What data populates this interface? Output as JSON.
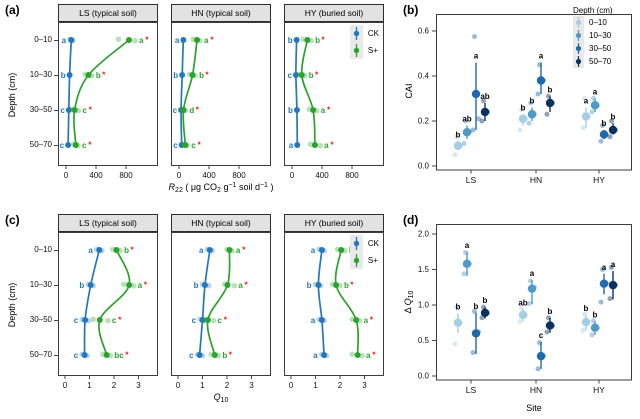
{
  "sig_symbol": "*",
  "colors": {
    "ck": "#2377bd",
    "splus": "#2aa22b",
    "sig_star": "#e8191d",
    "depth": [
      "#a6cee3",
      "#4f9ac8",
      "#2069ad",
      "#0b3160"
    ],
    "strip_bg": "#e2e2e2",
    "border": "#3c3c3c"
  },
  "chart_data": [
    {
      "id": "a",
      "title": "(a)",
      "type": "line",
      "orientation": "horizontal-profile",
      "y_label": "Depth (cm)",
      "x_label": "R22 (ug CO2 g-1 soil d-1)",
      "x_label_rich": [
        [
          "i",
          "R"
        ],
        [
          "sub",
          "22"
        ],
        [
          "t",
          " ( μg CO"
        ],
        [
          "sub",
          "2"
        ],
        [
          "t",
          " g"
        ],
        [
          "sup",
          "−1"
        ],
        [
          "t",
          " soil d"
        ],
        [
          "sup",
          "−1"
        ],
        [
          "t",
          " )"
        ]
      ],
      "categories": [
        "0–10",
        "10–30",
        "30–50",
        "50–70"
      ],
      "x_ticks": [
        0,
        400,
        800
      ],
      "x_tick_labels": [
        "0",
        "400",
        "800"
      ],
      "xlim": [
        -40,
        1050
      ],
      "legend": {
        "items": [
          "CK",
          "S+"
        ]
      },
      "facets": [
        {
          "title": "LS (typical soil)",
          "series": [
            {
              "name": "CK",
              "values": [
                70,
                48,
                38,
                28
              ],
              "letters": [
                "a",
                "b",
                "c",
                "c"
              ],
              "sig": [
                false,
                false,
                false,
                false
              ],
              "reps": [
                [
                  55,
                  90
                ],
                [],
                [],
                []
              ]
            },
            {
              "name": "S+",
              "values": [
                840,
                300,
                115,
                130
              ],
              "letters": [
                "a",
                "b",
                "c",
                "c"
              ],
              "sig": [
                true,
                true,
                true,
                true
              ],
              "reps": [
                [
                  700,
                  920
                ],
                [
                  255,
                  345
                ],
                [
                  80,
                  165
                ],
                [
                  100,
                  160
                ]
              ]
            }
          ]
        },
        {
          "title": "HN (typical soil)",
          "series": [
            {
              "name": "CK",
              "values": [
                58,
                42,
                28,
                36
              ],
              "letters": [
                "a",
                "b",
                "c",
                "c"
              ],
              "sig": [
                false,
                false,
                false,
                false
              ],
              "reps": [
                [],
                [],
                [],
                []
              ]
            },
            {
              "name": "S+",
              "values": [
                240,
                180,
                60,
                85
              ],
              "letters": [
                "a",
                "b",
                "d",
                "c"
              ],
              "sig": [
                true,
                true,
                true,
                true
              ],
              "reps": [
                [
                  190,
                  280
                ],
                [
                  140,
                  215
                ],
                [
                  40,
                  85
                ],
                [
                  60,
                  110
                ]
              ]
            }
          ]
        },
        {
          "title": "HY (buried soil)",
          "series": [
            {
              "name": "CK",
              "values": [
                62,
                52,
                66,
                70
              ],
              "letters": [
                "b",
                "c",
                "b",
                "a"
              ],
              "sig": [
                false,
                false,
                false,
                false
              ],
              "reps": [
                [],
                [],
                [],
                []
              ]
            },
            {
              "name": "S+",
              "values": [
                205,
                130,
                282,
                305
              ],
              "letters": [
                "b",
                "b",
                "a",
                "a"
              ],
              "sig": [
                true,
                true,
                true,
                true
              ],
              "reps": [
                [
                  150,
                  255
                ],
                [
                  95,
                  170
                ],
                [
                  230,
                  330
                ],
                [
                  245,
                  375
                ]
              ]
            }
          ]
        }
      ]
    },
    {
      "id": "b",
      "title": "(b)",
      "type": "scatter",
      "y_label": "CAI",
      "x_label": "",
      "categories": [
        "LS",
        "HN",
        "HY"
      ],
      "y_ticks": [
        0,
        0.2,
        0.4,
        0.6
      ],
      "y_tick_labels": [
        "0.0",
        "0.2",
        "0.4",
        "0.6"
      ],
      "ylim": [
        0,
        0.68
      ],
      "legend": {
        "title": "Depth (cm)",
        "items": [
          "0–10",
          "10–30",
          "30–50",
          "50–70"
        ]
      },
      "series": [
        {
          "name": "0–10",
          "values": [
            0.09,
            0.21,
            0.22
          ],
          "err": [
            [
              0.07,
              0.11
            ],
            [
              0.18,
              0.23
            ],
            [
              0.17,
              0.26
            ]
          ],
          "letters": [
            "b",
            "b",
            "a"
          ],
          "reps": [
            [
              0.05,
              0.09,
              0.13
            ],
            [
              0.16,
              0.21,
              0.25
            ],
            [
              0.17,
              0.22,
              0.3
            ]
          ]
        },
        {
          "name": "10–30",
          "values": [
            0.15,
            0.23,
            0.27
          ],
          "err": [
            [
              0.12,
              0.18
            ],
            [
              0.2,
              0.26
            ],
            [
              0.24,
              0.3
            ]
          ],
          "letters": [
            "ab",
            "b",
            "a"
          ],
          "reps": [
            [
              0.1,
              0.15,
              0.2
            ],
            [
              0.19,
              0.23,
              0.28
            ],
            [
              0.24,
              0.27,
              0.3
            ]
          ]
        },
        {
          "name": "30–50",
          "values": [
            0.32,
            0.38,
            0.14
          ],
          "err": [
            [
              0.16,
              0.46
            ],
            [
              0.32,
              0.46
            ],
            [
              0.12,
              0.16
            ]
          ],
          "letters": [
            "a",
            "a",
            "b"
          ],
          "reps": [
            [
              0.16,
              0.21,
              0.575
            ],
            [
              0.32,
              0.38,
              0.45
            ],
            [
              0.11,
              0.14,
              0.18
            ]
          ]
        },
        {
          "name": "50–70",
          "values": [
            0.24,
            0.28,
            0.16
          ],
          "err": [
            [
              0.2,
              0.28
            ],
            [
              0.24,
              0.31
            ],
            [
              0.14,
              0.19
            ]
          ],
          "letters": [
            "ab",
            "b",
            "b"
          ],
          "reps": [
            [
              0.2,
              0.24,
              0.29
            ],
            [
              0.23,
              0.28,
              0.31
            ],
            [
              0.13,
              0.16,
              0.2
            ]
          ]
        }
      ]
    },
    {
      "id": "c",
      "title": "(c)",
      "type": "line",
      "orientation": "horizontal-profile",
      "y_label": "Depth (cm)",
      "x_label": "Q10",
      "x_label_rich": [
        [
          "i",
          "Q"
        ],
        [
          "sub",
          "10"
        ]
      ],
      "categories": [
        "0–10",
        "10–30",
        "30–50",
        "50–70"
      ],
      "x_ticks": [
        0,
        1,
        2,
        3
      ],
      "x_tick_labels": [
        "0",
        "1",
        "2",
        "3"
      ],
      "xlim": [
        -0.15,
        3.55
      ],
      "legend": {
        "items": [
          "CK",
          "S+"
        ]
      },
      "facets": [
        {
          "title": "LS (typical soil)",
          "series": [
            {
              "name": "CK",
              "values": [
                1.4,
                1.05,
                0.82,
                0.8
              ],
              "letters": [
                "a",
                "b",
                "c",
                "c"
              ],
              "sig": [
                false,
                false,
                false,
                false
              ],
              "reps": [
                [
                  1.3,
                  1.5
                ],
                [
                  0.95,
                  1.15
                ],
                [
                  0.7,
                  0.95
                ],
                [
                  0.7,
                  0.9
                ]
              ]
            },
            {
              "name": "S+",
              "values": [
                2.1,
                2.62,
                1.42,
                1.7
              ],
              "letters": [
                "b",
                "a",
                "c",
                "bc"
              ],
              "sig": [
                true,
                true,
                true,
                true
              ],
              "reps": [
                [
                  1.95,
                  2.25
                ],
                [
                  2.4,
                  2.8
                ],
                [
                  1.15,
                  1.75
                ],
                [
                  1.55,
                  1.85
                ]
              ]
            }
          ]
        },
        {
          "title": "HN (typical soil)",
          "series": [
            {
              "name": "CK",
              "values": [
                1.3,
                1.1,
                1.0,
                0.88
              ],
              "letters": [
                "a",
                "b",
                "c",
                "c"
              ],
              "sig": [
                false,
                false,
                false,
                false
              ],
              "reps": [
                [
                  1.2,
                  1.4
                ],
                [
                  1.0,
                  1.25
                ],
                [
                  0.9,
                  1.1
                ],
                [
                  0.8,
                  1.0
                ]
              ]
            },
            {
              "name": "S+",
              "values": [
                2.1,
                2.02,
                1.22,
                1.5
              ],
              "letters": [
                "a",
                "a",
                "c",
                "b"
              ],
              "sig": [
                true,
                true,
                true,
                true
              ],
              "reps": [
                [
                  2.0,
                  2.2
                ],
                [
                  1.9,
                  2.3
                ],
                [
                  1.1,
                  1.45
                ],
                [
                  1.35,
                  1.65
                ]
              ]
            }
          ]
        },
        {
          "title": "HY (buried soil)",
          "series": [
            {
              "name": "CK",
              "values": [
                1.26,
                1.12,
                1.26,
                1.35
              ],
              "letters": [
                "a",
                "b",
                "a",
                "a"
              ],
              "sig": [
                false,
                false,
                false,
                false
              ],
              "reps": [
                [
                  1.15,
                  1.35
                ],
                [
                  1.0,
                  1.2
                ],
                [
                  1.15,
                  1.35
                ],
                [
                  1.25,
                  1.45
                ]
              ]
            },
            {
              "name": "S+",
              "values": [
                2.05,
                1.84,
                2.66,
                2.72
              ],
              "letters": [
                "b",
                "b",
                "a",
                "a"
              ],
              "sig": [
                true,
                true,
                true,
                true
              ],
              "reps": [
                [
                  1.9,
                  2.2
                ],
                [
                  1.7,
                  2.0
                ],
                [
                  2.5,
                  2.8
                ],
                [
                  2.5,
                  2.9
                ]
              ]
            }
          ]
        }
      ]
    },
    {
      "id": "d",
      "title": "(d)",
      "type": "scatter",
      "y_label": "ΔQ10",
      "y_label_rich": [
        [
          "t",
          "Δ "
        ],
        [
          "i",
          "Q"
        ],
        [
          "sub",
          "10"
        ]
      ],
      "x_label": "Site",
      "categories": [
        "LS",
        "HN",
        "HY"
      ],
      "y_ticks": [
        0,
        0.5,
        1,
        1.5,
        2
      ],
      "y_tick_labels": [
        "0.0",
        "0.5",
        "1.0",
        "1.5",
        "2.0"
      ],
      "ylim": [
        0,
        2.1
      ],
      "legend": {
        "title": "Depth (cm)",
        "items": [
          "0–10",
          "10–30",
          "30–50",
          "50–70"
        ]
      },
      "series": [
        {
          "name": "0–10",
          "values": [
            0.75,
            0.86,
            0.76
          ],
          "err": [
            [
              0.61,
              0.88
            ],
            [
              0.77,
              0.94
            ],
            [
              0.64,
              0.86
            ]
          ],
          "letters": [
            "b",
            "ab",
            "b"
          ],
          "reps": [
            [
              0.45,
              0.75,
              0.97
            ],
            [
              0.77,
              0.86,
              0.95
            ],
            [
              0.64,
              0.76,
              0.87
            ]
          ]
        },
        {
          "name": "10–30",
          "values": [
            1.58,
            1.23,
            0.68
          ],
          "err": [
            [
              1.41,
              1.75
            ],
            [
              1.01,
              1.35
            ],
            [
              0.58,
              0.77
            ]
          ],
          "letters": [
            "a",
            "a",
            "b"
          ],
          "reps": [
            [
              1.44,
              1.58,
              1.74
            ],
            [
              1.02,
              1.25,
              1.34
            ],
            [
              0.58,
              0.68,
              0.78
            ]
          ]
        },
        {
          "name": "30–50",
          "values": [
            0.6,
            0.28,
            1.3
          ],
          "err": [
            [
              0.31,
              0.89
            ],
            [
              0.1,
              0.48
            ],
            [
              1.15,
              1.44
            ]
          ],
          "letters": [
            "b",
            "c",
            "a"
          ],
          "reps": [
            [
              0.33,
              0.62,
              0.91
            ],
            [
              0.1,
              0.28,
              0.47
            ],
            [
              1.04,
              1.31,
              1.5
            ]
          ]
        },
        {
          "name": "50–70",
          "values": [
            0.89,
            0.71,
            1.28
          ],
          "err": [
            [
              0.81,
              0.97
            ],
            [
              0.61,
              0.82
            ],
            [
              1.08,
              1.48
            ]
          ],
          "letters": [
            "b",
            "b",
            "a"
          ],
          "reps": [
            [
              0.82,
              0.89,
              0.97
            ],
            [
              0.62,
              0.71,
              0.82
            ],
            [
              1.09,
              1.28,
              1.53
            ]
          ]
        }
      ]
    }
  ]
}
